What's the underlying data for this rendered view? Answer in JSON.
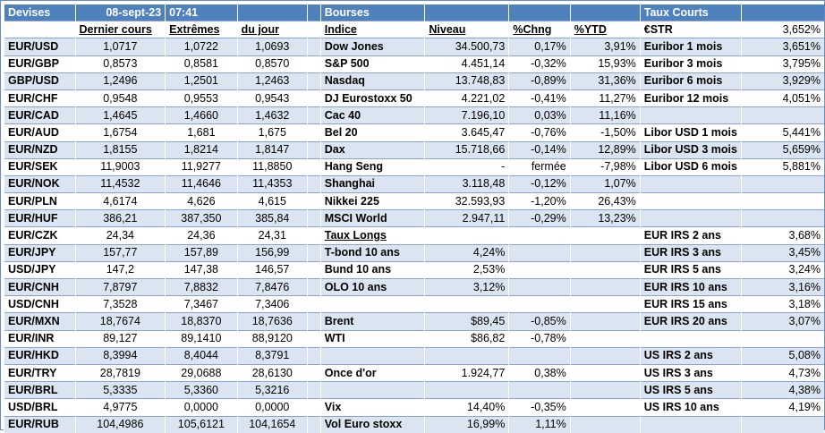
{
  "header": {
    "devises": "Devises",
    "date": "08-sept-23",
    "time": "07:41",
    "bourses": "Bourses",
    "taux_courts": "Taux Courts",
    "estr_label": "€STR",
    "estr_value": "3,652%"
  },
  "subheader": {
    "dernier": "Dernier cours",
    "extremes": "Extrêmes",
    "dujour": "du jour",
    "indice": "Indice",
    "niveau": "Niveau",
    "chng": "%Chng",
    "ytd": "%YTD"
  },
  "rows": [
    {
      "pair": "EUR/USD",
      "last": "1,0717",
      "hi": "1,0722",
      "lo": "1,0693",
      "idx": "Dow Jones",
      "lvl": "34.500,73",
      "chg": "0,17%",
      "ytd": "3,91%",
      "rate": "Euribor 1 mois",
      "rv": "3,651%"
    },
    {
      "pair": "EUR/GBP",
      "last": "0,8573",
      "hi": "0,8581",
      "lo": "0,8570",
      "idx": "S&P 500",
      "lvl": "4.451,14",
      "chg": "-0,32%",
      "ytd": "15,93%",
      "rate": "Euribor 3 mois",
      "rv": "3,795%"
    },
    {
      "pair": "GBP/USD",
      "last": "1,2496",
      "hi": "1,2501",
      "lo": "1,2463",
      "idx": "Nasdaq",
      "lvl": "13.748,83",
      "chg": "-0,89%",
      "ytd": "31,36%",
      "rate": "Euribor 6 mois",
      "rv": "3,929%"
    },
    {
      "pair": "EUR/CHF",
      "last": "0,9548",
      "hi": "0,9553",
      "lo": "0,9543",
      "idx": "DJ Eurostoxx 50",
      "lvl": "4.221,02",
      "chg": "-0,41%",
      "ytd": "11,27%",
      "rate": "Euribor 12 mois",
      "rv": "4,051%"
    },
    {
      "pair": "EUR/CAD",
      "last": "1,4645",
      "hi": "1,4660",
      "lo": "1,4632",
      "idx": "Cac 40",
      "lvl": "7.196,10",
      "chg": "0,03%",
      "ytd": "11,16%",
      "rate": "",
      "rv": ""
    },
    {
      "pair": "EUR/AUD",
      "last": "1,6754",
      "hi": "1,681",
      "lo": "1,675",
      "idx": "Bel 20",
      "lvl": "3.645,47",
      "chg": "-0,76%",
      "ytd": "-1,50%",
      "rate": "Libor USD 1 mois",
      "rv": "5,441%"
    },
    {
      "pair": "EUR/NZD",
      "last": "1,8155",
      "hi": "1,8214",
      "lo": "1,8147",
      "idx": "Dax",
      "lvl": "15.718,66",
      "chg": "-0,14%",
      "ytd": "12,89%",
      "rate": "Libor USD 3 mois",
      "rv": "5,659%"
    },
    {
      "pair": "EUR/SEK",
      "last": "11,9003",
      "hi": "11,9277",
      "lo": "11,8850",
      "idx": "Hang Seng",
      "lvl": "-",
      "chg": "fermée",
      "ytd": "-7,98%",
      "rate": "Libor USD 6 mois",
      "rv": "5,881%"
    },
    {
      "pair": "EUR/NOK",
      "last": "11,4532",
      "hi": "11,4646",
      "lo": "11,4353",
      "idx": "Shanghai",
      "lvl": "3.118,48",
      "chg": "-0,12%",
      "ytd": "1,07%",
      "rate": "",
      "rv": ""
    },
    {
      "pair": "EUR/PLN",
      "last": "4,6174",
      "hi": "4,626",
      "lo": "4,615",
      "idx": "Nikkei 225",
      "lvl": "32.593,93",
      "chg": "-1,20%",
      "ytd": "26,43%",
      "rate": "",
      "rv": ""
    },
    {
      "pair": "EUR/HUF",
      "last": "386,21",
      "hi": "387,350",
      "lo": "385,84",
      "idx": "MSCI World",
      "lvl": "2.947,11",
      "chg": "-0,29%",
      "ytd": "13,23%",
      "rate": "",
      "rv": ""
    },
    {
      "pair": "EUR/CZK",
      "last": "24,34",
      "hi": "24,36",
      "lo": "24,31",
      "idx": "Taux Longs",
      "lvl": "",
      "chg": "",
      "ytd": "",
      "rate": "EUR IRS 2 ans",
      "rv": "3,68%"
    },
    {
      "pair": "EUR/JPY",
      "last": "157,77",
      "hi": "157,89",
      "lo": "156,99",
      "idx": "T-bond 10 ans",
      "lvl": "4,24%",
      "chg": "",
      "ytd": "",
      "rate": "EUR IRS 3 ans",
      "rv": "3,45%"
    },
    {
      "pair": "USD/JPY",
      "last": "147,2",
      "hi": "147,38",
      "lo": "146,57",
      "idx": "Bund 10 ans",
      "lvl": "2,53%",
      "chg": "",
      "ytd": "",
      "rate": "EUR IRS 5 ans",
      "rv": "3,24%"
    },
    {
      "pair": "EUR/CNH",
      "last": "7,8797",
      "hi": "7,8832",
      "lo": "7,8476",
      "idx": "OLO 10 ans",
      "lvl": "3,12%",
      "chg": "",
      "ytd": "",
      "rate": "EUR IRS 10 ans",
      "rv": "3,16%"
    },
    {
      "pair": "USD/CNH",
      "last": "7,3528",
      "hi": "7,3467",
      "lo": "7,3406",
      "idx": "",
      "lvl": "",
      "chg": "",
      "ytd": "",
      "rate": "EUR IRS 15 ans",
      "rv": "3,18%"
    },
    {
      "pair": "EUR/MXN",
      "last": "18,7674",
      "hi": "18,8370",
      "lo": "18,7636",
      "idx": "Brent",
      "lvl": "$89,45",
      "chg": "-0,85%",
      "ytd": "",
      "rate": "EUR IRS 20 ans",
      "rv": "3,07%"
    },
    {
      "pair": "EUR/INR",
      "last": "89,127",
      "hi": "89,1410",
      "lo": "88,9120",
      "idx": "WTI",
      "lvl": "$86,82",
      "chg": "-0,78%",
      "ytd": "",
      "rate": "",
      "rv": ""
    },
    {
      "pair": "EUR/HKD",
      "last": "8,3994",
      "hi": "8,4044",
      "lo": "8,3791",
      "idx": "",
      "lvl": "",
      "chg": "",
      "ytd": "",
      "rate": "US IRS 2 ans",
      "rv": "5,08%"
    },
    {
      "pair": "EUR/TRY",
      "last": "28,7819",
      "hi": "29,0688",
      "lo": "28,6130",
      "idx": "Once d'or",
      "lvl": "1.924,77",
      "chg": "0,38%",
      "ytd": "",
      "rate": "US IRS 3 ans",
      "rv": "4,73%"
    },
    {
      "pair": "EUR/BRL",
      "last": "5,3335",
      "hi": "5,3360",
      "lo": "5,3216",
      "idx": "",
      "lvl": "",
      "chg": "",
      "ytd": "",
      "rate": "US IRS 5 ans",
      "rv": "4,38%"
    },
    {
      "pair": "USD/BRL",
      "last": "4,9775",
      "hi": "0,0000",
      "lo": "0,0000",
      "idx": "Vix",
      "lvl": "14,40%",
      "chg": "-0,35%",
      "ytd": "",
      "rate": "US IRS 10 ans",
      "rv": "4,19%"
    },
    {
      "pair": "EUR/RUB",
      "last": "104,4986",
      "hi": "105,6121",
      "lo": "104,1654",
      "idx": "Vol Euro stoxx",
      "lvl": "16,99%",
      "chg": "1,11%",
      "ytd": "",
      "rate": "",
      "rv": ""
    }
  ]
}
